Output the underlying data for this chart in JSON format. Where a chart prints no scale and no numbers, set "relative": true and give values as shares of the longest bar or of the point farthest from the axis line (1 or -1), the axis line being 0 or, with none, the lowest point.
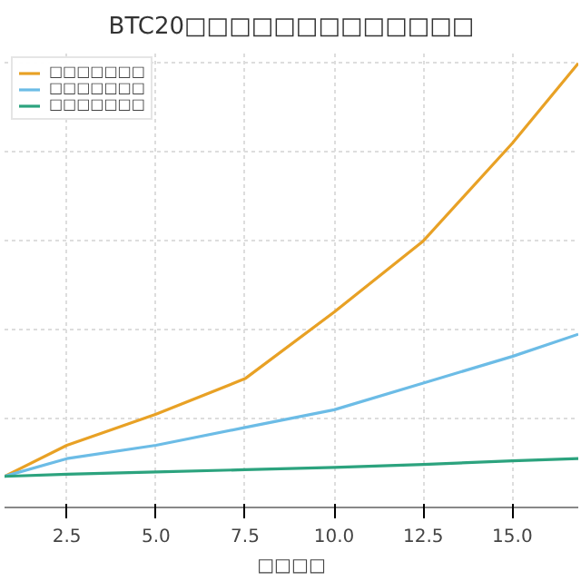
{
  "chart_data": {
    "type": "line",
    "title": "BTC20□□□□□□□□□□□□□",
    "xlabel": "□□□□",
    "relative": true,
    "x": [
      0.75,
      2.5,
      5,
      7.5,
      10,
      12.5,
      15,
      16.85
    ],
    "xlim": [
      0.75,
      16.85
    ],
    "xticks": [
      2.5,
      {
        "value": 5,
        "label": "5.0"
      },
      7.5,
      {
        "value": 10,
        "label": "10.0"
      },
      12.5,
      {
        "value": 15,
        "label": "15.0"
      }
    ],
    "series": [
      {
        "name": "□□□□□□□",
        "color": "#e8a125",
        "values": [
          0.07,
          0.14,
          0.21,
          0.29,
          0.44,
          0.6,
          0.82,
          1.0
        ]
      },
      {
        "name": "□□□□□□□",
        "color": "#6cbce6",
        "values": [
          0.07,
          0.11,
          0.14,
          0.18,
          0.22,
          0.28,
          0.34,
          0.39
        ]
      },
      {
        "name": "□□□□□□□",
        "color": "#2ca37e",
        "values": [
          0.07,
          0.075,
          0.08,
          0.085,
          0.09,
          0.097,
          0.105,
          0.11
        ]
      }
    ],
    "grid": true,
    "legend": "top left",
    "tick_labels": "x"
  }
}
